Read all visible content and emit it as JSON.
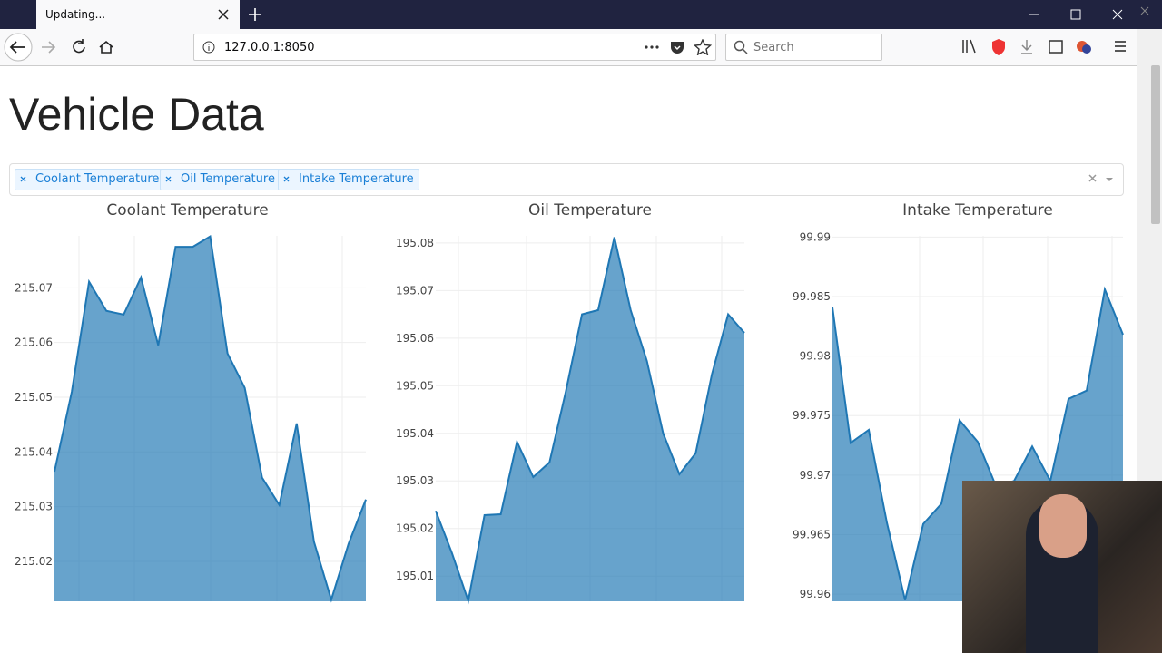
{
  "browser": {
    "tab_title": "Updating...",
    "url": "127.0.0.1:8050",
    "search_placeholder": "Search"
  },
  "page": {
    "title": "Vehicle Data",
    "selected": [
      "Coolant Temperature",
      "Oil Temperature",
      "Intake Temperature"
    ]
  },
  "chart_data": [
    {
      "type": "area",
      "title": "Coolant Temperature",
      "color": "#1f77b4",
      "values": [
        215.0364,
        215.051,
        215.0711,
        215.0658,
        215.0651,
        215.0719,
        215.0595,
        215.0775,
        215.0775,
        215.0794,
        215.058,
        215.0517,
        215.0353,
        215.0303,
        215.0452,
        215.0236,
        215.013,
        215.0232,
        215.0313
      ],
      "ylim": [
        215.0127,
        215.0795
      ],
      "yticks": [
        215.02,
        215.03,
        215.04,
        215.05,
        215.06,
        215.07
      ],
      "grid": true
    },
    {
      "type": "area",
      "title": "Oil Temperature",
      "color": "#1f77b4",
      "values": [
        195.0237,
        195.0148,
        195.0048,
        195.0228,
        195.023,
        195.0382,
        195.0308,
        195.0339,
        195.0487,
        195.065,
        195.0659,
        195.0812,
        195.0659,
        195.0552,
        195.04,
        195.0314,
        195.0358,
        195.0524,
        195.065,
        195.0611
      ],
      "ylim": [
        195.0047,
        195.0815
      ],
      "yticks": [
        195.01,
        195.02,
        195.03,
        195.04,
        195.05,
        195.06,
        195.07,
        195.08
      ],
      "grid": true
    },
    {
      "type": "area",
      "title": "Intake Temperature",
      "color": "#1f77b4",
      "values": [
        99.9841,
        99.9727,
        99.9738,
        99.966,
        99.9595,
        99.9659,
        99.9676,
        99.9746,
        99.9728,
        99.9691,
        99.9695,
        99.9724,
        99.9695,
        99.9764,
        99.9771,
        99.9856,
        99.9818
      ],
      "ylim": [
        99.9594,
        99.9901
      ],
      "yticks": [
        99.96,
        99.965,
        99.97,
        99.975,
        99.98,
        99.985,
        99.99
      ],
      "grid": true
    }
  ]
}
